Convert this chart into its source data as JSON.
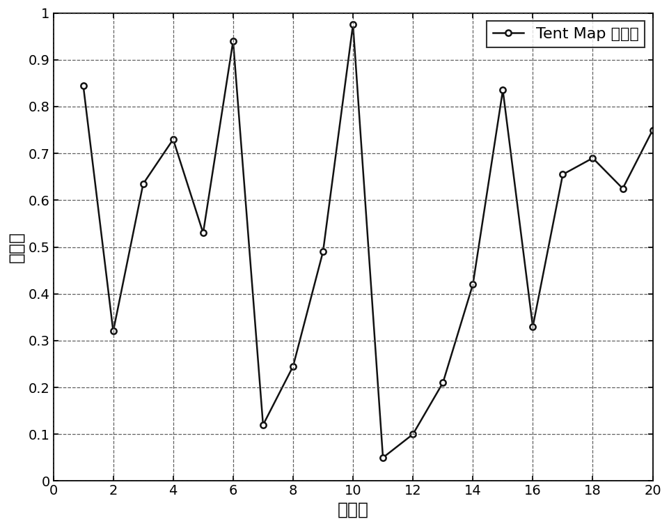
{
  "x": [
    1,
    2,
    3,
    4,
    5,
    6,
    7,
    8,
    9,
    10,
    11,
    12,
    13,
    14,
    15,
    16,
    17,
    18,
    19,
    20
  ],
  "y": [
    0.845,
    0.32,
    0.635,
    0.73,
    0.53,
    0.94,
    0.12,
    0.245,
    0.49,
    0.975,
    0.05,
    0.1,
    0.21,
    0.42,
    0.835,
    0.33,
    0.655,
    0.69,
    0.625,
    0.75
  ],
  "xlabel": "个体数",
  "ylabel": "随机数",
  "legend_label": "Tent Map 初始化",
  "xlim": [
    0,
    20
  ],
  "ylim": [
    0,
    1
  ],
  "xticks": [
    0,
    2,
    4,
    6,
    8,
    10,
    12,
    14,
    16,
    18,
    20
  ],
  "yticks": [
    0,
    0.1,
    0.2,
    0.3,
    0.4,
    0.5,
    0.6,
    0.7,
    0.8,
    0.9,
    1
  ],
  "line_color": "#111111",
  "marker": "o",
  "marker_size": 6,
  "line_width": 1.8,
  "grid_color": "#444444",
  "grid_style": "--",
  "background_color": "#ffffff",
  "font_size_label": 18,
  "font_size_tick": 14,
  "font_size_legend": 16
}
